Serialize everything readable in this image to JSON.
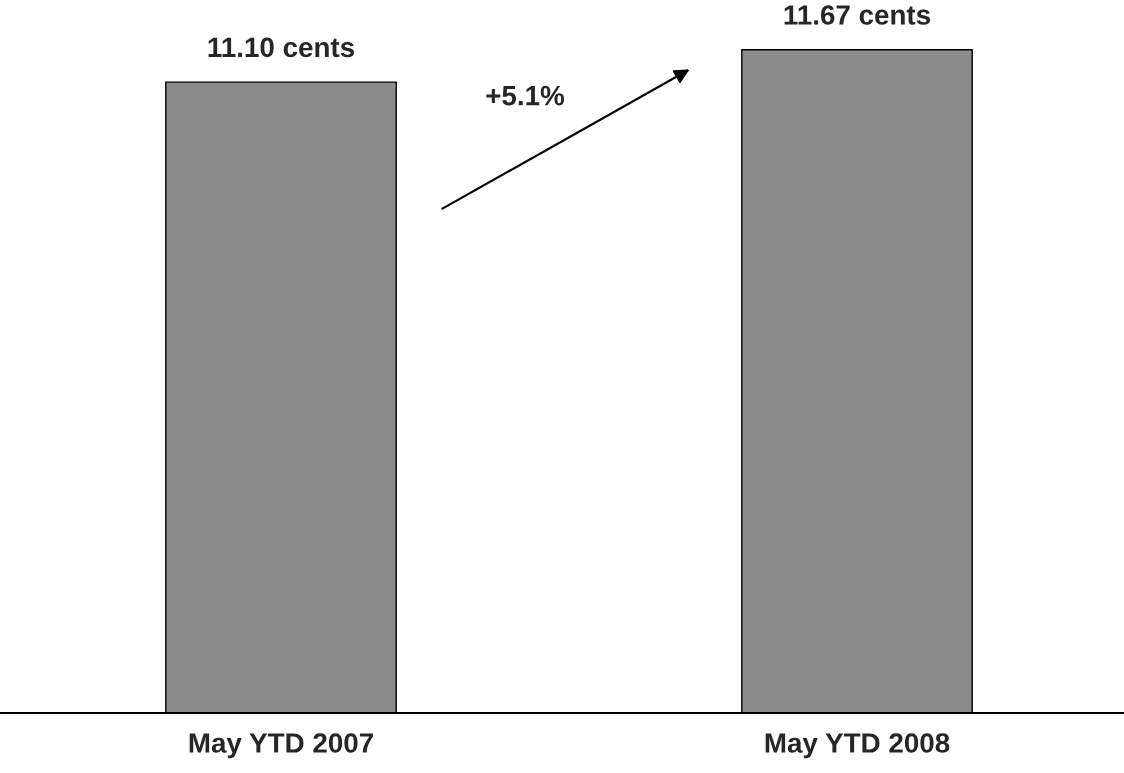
{
  "chart_data": {
    "type": "bar",
    "categories": [
      "May YTD 2007",
      "May YTD 2008"
    ],
    "values": [
      11.1,
      11.67
    ],
    "value_labels": [
      "11.10 cents",
      "11.67 cents"
    ],
    "color": "#8c8c8c",
    "tick_labels": "x",
    "grid": false,
    "legend": false,
    "annotations": [
      "+5.1%"
    ]
  }
}
